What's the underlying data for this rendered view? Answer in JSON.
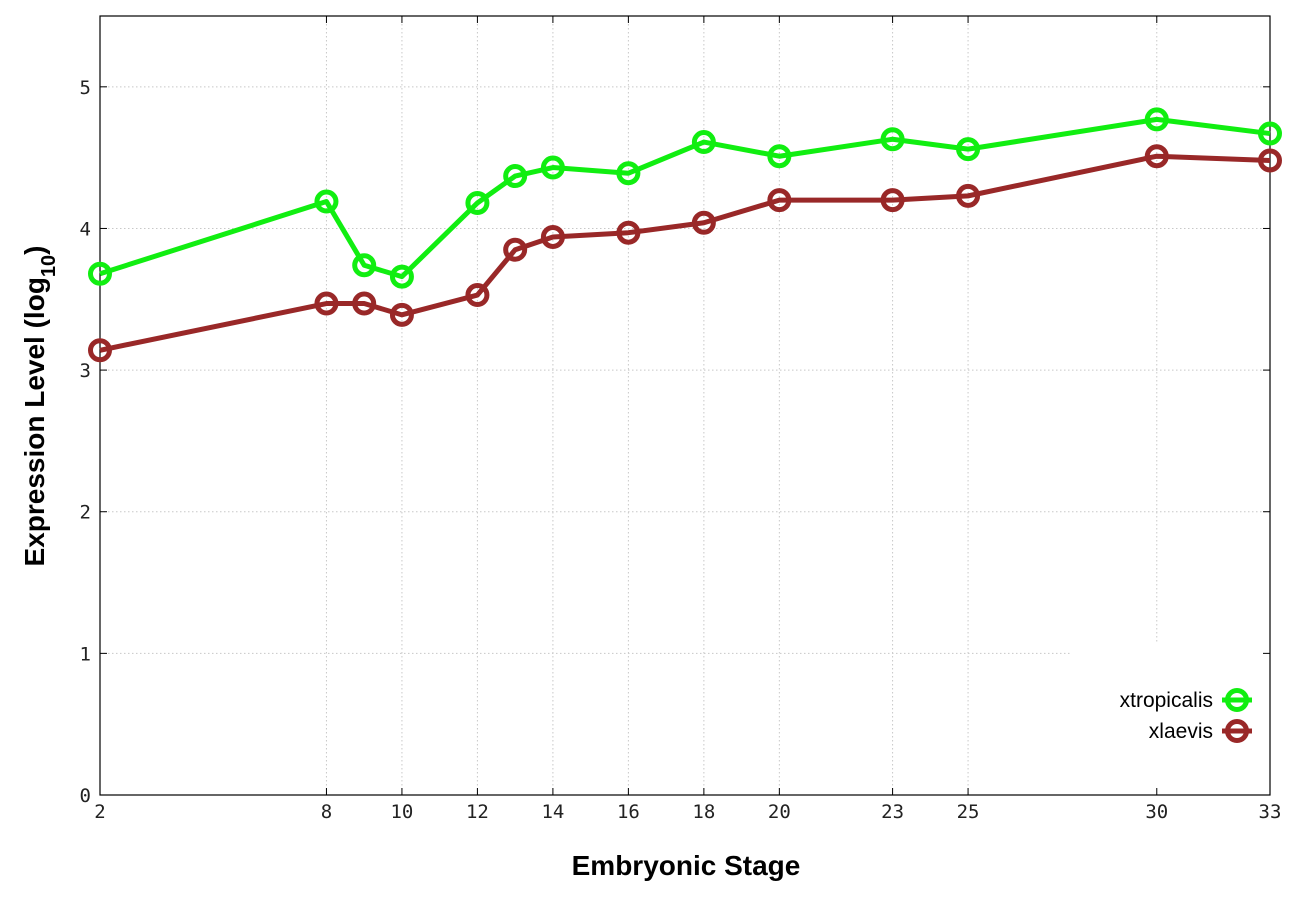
{
  "chart_data": {
    "type": "line",
    "xlabel": "Embryonic Stage",
    "ylabel_main": "Expression Level (log",
    "ylabel_sub": "10",
    "ylabel_close": ")",
    "x_ticks": [
      "2",
      "8",
      "10",
      "12",
      "14",
      "16",
      "18",
      "20",
      "23",
      "25",
      "30",
      "33"
    ],
    "x": [
      2,
      8,
      9,
      10,
      12,
      13,
      14,
      16,
      18,
      20,
      23,
      25,
      30,
      33
    ],
    "xlim": [
      2,
      33
    ],
    "ylim": [
      0,
      5.5
    ],
    "y_ticks": [
      "0",
      "1",
      "2",
      "3",
      "4",
      "5"
    ],
    "grid": true,
    "legend_position": "bottom-right",
    "series": [
      {
        "name": "xtropicalis",
        "color": "#11ee11",
        "marker": "circle-open",
        "values": [
          3.68,
          4.19,
          3.74,
          3.66,
          4.18,
          4.37,
          4.43,
          4.39,
          4.61,
          4.51,
          4.63,
          4.56,
          4.77,
          4.67
        ]
      },
      {
        "name": "xlaevis",
        "color": "#992828",
        "marker": "circle-open",
        "values": [
          3.14,
          3.47,
          3.47,
          3.39,
          3.53,
          3.85,
          3.94,
          3.97,
          4.04,
          4.2,
          4.2,
          4.23,
          4.51,
          4.48
        ]
      }
    ]
  }
}
